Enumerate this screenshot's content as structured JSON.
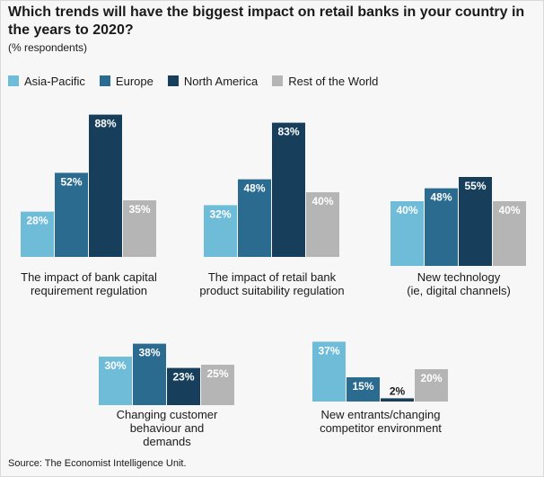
{
  "title": "Which trends will have the biggest impact on retail banks in your country in the years to 2020?",
  "subtitle": "(% respondents)",
  "source": "Source: The Economist Intelligence Unit.",
  "colors": {
    "Asia-Pacific": "#6fbcd9",
    "Europe": "#2a6b8f",
    "North America": "#173f5c",
    "Rest of the World": "#b5b5b5"
  },
  "chart_data": {
    "type": "bar",
    "ylim": [
      0,
      100
    ],
    "legend_position": "top-left",
    "series": [
      {
        "name": "Asia-Pacific"
      },
      {
        "name": "Europe"
      },
      {
        "name": "North America"
      },
      {
        "name": "Rest of the World"
      }
    ],
    "categories": [
      {
        "label": [
          "The impact of bank capital",
          "requirement regulation"
        ],
        "values": [
          28,
          52,
          88,
          35
        ],
        "value_labels": [
          "28%",
          "52%",
          "88%",
          "35%"
        ]
      },
      {
        "label": [
          "The impact of retail bank",
          "product suitability regulation"
        ],
        "values": [
          32,
          48,
          83,
          40
        ],
        "value_labels": [
          "32%",
          "48%",
          "83%",
          "40%"
        ]
      },
      {
        "label": [
          "New technology",
          "(ie, digital channels)"
        ],
        "values": [
          40,
          48,
          55,
          40
        ],
        "value_labels": [
          "40%",
          "48%",
          "55%",
          "40%"
        ]
      },
      {
        "label": [
          "Changing customer",
          "behaviour and",
          "demands"
        ],
        "values": [
          30,
          38,
          23,
          25
        ],
        "value_labels": [
          "30%",
          "38%",
          "23%",
          "25%"
        ]
      },
      {
        "label": [
          "New entrants/changing",
          "competitor environment"
        ],
        "values": [
          37,
          15,
          2,
          20
        ],
        "value_labels": [
          "37%",
          "15%",
          "2%",
          "20%"
        ]
      }
    ]
  }
}
